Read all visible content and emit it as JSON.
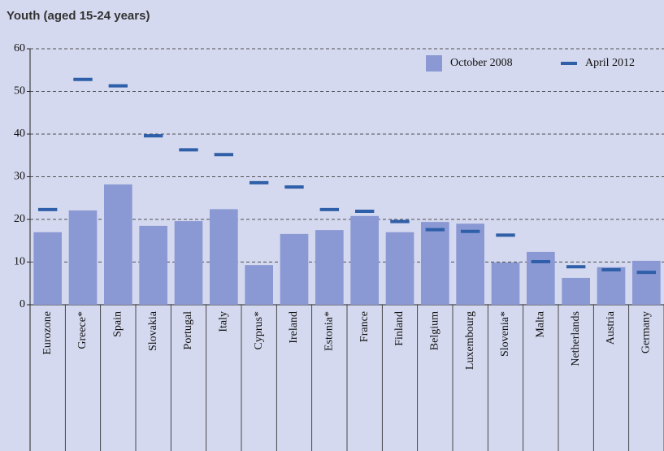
{
  "chart_data": {
    "type": "bar",
    "title": "Youth (aged 15-24 years)",
    "categories": [
      "Eurozone",
      "Greece*",
      "Spain",
      "Slovakia",
      "Portugal",
      "Italy",
      "Cyprus*",
      "Ireland",
      "Estonia*",
      "France",
      "Finland",
      "Belgium",
      "Luxembourg",
      "Slovenia*",
      "Malta",
      "Netherlands",
      "Austria",
      "Germany"
    ],
    "series": [
      {
        "name": "October 2008",
        "color": "#8a98d4",
        "mark": "bar",
        "values": [
          17,
          22.1,
          28.2,
          18.5,
          19.6,
          22.4,
          9.3,
          16.6,
          17.5,
          20.8,
          17,
          19.4,
          19,
          9.9,
          12.4,
          6.3,
          8.8,
          10.3
        ]
      },
      {
        "name": "April 2012",
        "color": "#2e5fa8",
        "mark": "dash",
        "values": [
          22.3,
          52.8,
          51.3,
          39.6,
          36.3,
          35.2,
          28.6,
          27.6,
          22.3,
          21.9,
          19.5,
          17.6,
          17.2,
          16.3,
          10.1,
          8.9,
          8.2,
          7.6
        ]
      }
    ],
    "ylim": [
      0,
      60
    ],
    "yticks": [
      0,
      10,
      20,
      30,
      40,
      50,
      60
    ],
    "grid": true,
    "legend": "upper right"
  }
}
